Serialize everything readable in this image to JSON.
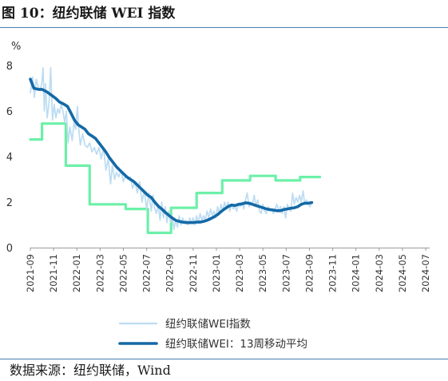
{
  "title": "图 10：纽约联储 WEI 指数",
  "source": "数据来源：纽约联储，Wind",
  "chart_data": {
    "type": "line",
    "unit": "%",
    "ylim": [
      0,
      8
    ],
    "y_ticks": [
      "0",
      "2",
      "4",
      "6",
      "8"
    ],
    "x_ticks": [
      "2021-09",
      "2021-11",
      "2022-01",
      "2022-03",
      "2022-05",
      "2022-07",
      "2022-09",
      "2022-11",
      "2023-01",
      "2023-03",
      "2023-05",
      "2023-07",
      "2023-09",
      "2023-11",
      "2024-01",
      "2024-03",
      "2024-05",
      "2024-07"
    ],
    "legend_position": "bottom",
    "series": [
      {
        "name": "纽约联储WEI指数",
        "color": "#bcdcf2",
        "style": "thin",
        "points": [
          [
            0,
            6.8
          ],
          [
            0.2,
            7.5
          ],
          [
            0.35,
            6.6
          ],
          [
            0.5,
            7.4
          ],
          [
            0.7,
            7.0
          ],
          [
            0.85,
            6.9
          ],
          [
            1.0,
            7.3
          ],
          [
            1.1,
            7.9
          ],
          [
            1.2,
            6.0
          ],
          [
            1.3,
            7.2
          ],
          [
            1.45,
            5.7
          ],
          [
            1.6,
            6.3
          ],
          [
            1.75,
            7.9
          ],
          [
            1.9,
            5.6
          ],
          [
            2.05,
            6.3
          ],
          [
            2.2,
            5.7
          ],
          [
            2.35,
            6.1
          ],
          [
            2.5,
            5.9
          ],
          [
            2.65,
            6.3
          ],
          [
            2.8,
            6.0
          ],
          [
            2.95,
            5.5
          ],
          [
            3.1,
            6.0
          ],
          [
            3.25,
            4.6
          ],
          [
            3.4,
            5.3
          ],
          [
            3.6,
            4.7
          ],
          [
            3.75,
            5.5
          ],
          [
            3.9,
            5.2
          ],
          [
            4.0,
            5.9
          ],
          [
            4.05,
            6.2
          ],
          [
            4.15,
            5.3
          ],
          [
            4.3,
            4.5
          ],
          [
            4.5,
            5.0
          ],
          [
            4.7,
            4.5
          ],
          [
            4.9,
            4.4
          ],
          [
            5.1,
            4.6
          ],
          [
            5.3,
            4.2
          ],
          [
            5.5,
            4.4
          ],
          [
            5.7,
            4.1
          ],
          [
            5.9,
            4.4
          ],
          [
            6.1,
            3.9
          ],
          [
            6.3,
            4.4
          ],
          [
            6.5,
            3.4
          ],
          [
            6.7,
            3.9
          ],
          [
            6.9,
            2.8
          ],
          [
            7.05,
            3.6
          ],
          [
            7.25,
            3.0
          ],
          [
            7.4,
            3.3
          ],
          [
            7.6,
            3.1
          ],
          [
            7.8,
            3.4
          ],
          [
            8.0,
            2.9
          ],
          [
            8.2,
            3.2
          ],
          [
            8.4,
            3.0
          ],
          [
            8.6,
            3.1
          ],
          [
            8.8,
            2.6
          ],
          [
            9.0,
            2.9
          ],
          [
            9.2,
            2.4
          ],
          [
            9.4,
            2.9
          ],
          [
            9.6,
            2.0
          ],
          [
            9.8,
            2.5
          ],
          [
            10.0,
            1.7
          ],
          [
            10.2,
            2.4
          ],
          [
            10.4,
            1.6
          ],
          [
            10.55,
            2.3
          ],
          [
            10.7,
            1.7
          ],
          [
            10.85,
            1.5
          ],
          [
            11.0,
            1.9
          ],
          [
            11.15,
            1.2
          ],
          [
            11.3,
            2.0
          ],
          [
            11.45,
            1.3
          ],
          [
            11.6,
            1.8
          ],
          [
            11.75,
            1.1
          ],
          [
            11.9,
            1.6
          ],
          [
            12.05,
            1.1
          ],
          [
            12.2,
            1.4
          ],
          [
            12.35,
            0.8
          ],
          [
            12.5,
            1.2
          ],
          [
            12.65,
            0.9
          ],
          [
            12.8,
            1.4
          ],
          [
            12.95,
            1.0
          ],
          [
            13.1,
            1.3
          ],
          [
            13.25,
            1.1
          ],
          [
            13.4,
            1.2
          ],
          [
            13.55,
            1.0
          ],
          [
            13.7,
            1.3
          ],
          [
            13.85,
            1.1
          ],
          [
            14.0,
            1.3
          ],
          [
            14.15,
            1.0
          ],
          [
            14.3,
            1.4
          ],
          [
            14.45,
            1.1
          ],
          [
            14.6,
            1.5
          ],
          [
            14.75,
            1.2
          ],
          [
            14.9,
            1.4
          ],
          [
            15.05,
            1.2
          ],
          [
            15.2,
            1.6
          ],
          [
            15.35,
            1.3
          ],
          [
            15.5,
            1.7
          ],
          [
            15.65,
            1.4
          ],
          [
            15.8,
            1.6
          ],
          [
            15.95,
            1.3
          ],
          [
            16.1,
            1.8
          ],
          [
            16.25,
            1.5
          ],
          [
            16.4,
            1.9
          ],
          [
            16.55,
            1.6
          ],
          [
            16.7,
            2.0
          ],
          [
            16.85,
            1.7
          ],
          [
            17.0,
            2.0
          ],
          [
            17.15,
            1.6
          ],
          [
            17.3,
            1.9
          ],
          [
            17.45,
            1.7
          ],
          [
            17.6,
            1.8
          ],
          [
            17.75,
            1.6
          ],
          [
            17.9,
            1.9
          ],
          [
            18.05,
            1.8
          ],
          [
            18.2,
            2.0
          ],
          [
            18.35,
            1.7
          ],
          [
            18.5,
            2.1
          ],
          [
            18.65,
            2.4
          ],
          [
            18.8,
            1.8
          ],
          [
            18.95,
            2.0
          ],
          [
            19.1,
            1.9
          ],
          [
            19.25,
            2.3
          ],
          [
            19.4,
            1.8
          ],
          [
            19.55,
            2.1
          ],
          [
            19.7,
            1.6
          ],
          [
            19.85,
            1.5
          ],
          [
            20.0,
            1.9
          ],
          [
            20.15,
            1.6
          ],
          [
            20.3,
            1.5
          ],
          [
            20.45,
            1.8
          ],
          [
            20.6,
            1.6
          ],
          [
            20.75,
            1.7
          ],
          [
            20.9,
            1.5
          ],
          [
            21.05,
            1.7
          ],
          [
            21.2,
            1.9
          ],
          [
            21.35,
            1.6
          ],
          [
            21.5,
            1.8
          ],
          [
            21.65,
            1.5
          ],
          [
            21.8,
            1.8
          ],
          [
            21.95,
            1.3
          ],
          [
            22.1,
            1.9
          ],
          [
            22.25,
            1.7
          ],
          [
            22.4,
            1.6
          ],
          [
            22.55,
            2.4
          ],
          [
            22.7,
            1.9
          ],
          [
            22.85,
            2.2
          ],
          [
            23.0,
            2.0
          ],
          [
            23.15,
            2.3
          ],
          [
            23.3,
            2.0
          ],
          [
            23.45,
            2.5
          ],
          [
            23.6,
            1.9
          ],
          [
            23.75,
            2.1
          ],
          [
            23.9,
            1.9
          ],
          [
            24.05,
            1.8
          ],
          [
            24.2,
            2.0
          ]
        ]
      },
      {
        "name": "纽约联储WEI：13周移动平均",
        "color": "#1469a6",
        "style": "thick",
        "points": [
          [
            0,
            7.4
          ],
          [
            0.3,
            7.0
          ],
          [
            0.7,
            6.95
          ],
          [
            1.0,
            6.95
          ],
          [
            1.4,
            6.85
          ],
          [
            1.8,
            6.7
          ],
          [
            2.2,
            6.55
          ],
          [
            2.5,
            6.4
          ],
          [
            2.9,
            6.3
          ],
          [
            3.2,
            6.2
          ],
          [
            3.5,
            5.9
          ],
          [
            3.8,
            5.6
          ],
          [
            4.1,
            5.4
          ],
          [
            4.4,
            5.3
          ],
          [
            4.7,
            5.2
          ],
          [
            5.0,
            5.0
          ],
          [
            5.3,
            4.9
          ],
          [
            5.6,
            4.8
          ],
          [
            5.9,
            4.6
          ],
          [
            6.2,
            4.4
          ],
          [
            6.5,
            4.2
          ],
          [
            6.8,
            3.95
          ],
          [
            7.1,
            3.75
          ],
          [
            7.4,
            3.55
          ],
          [
            7.7,
            3.4
          ],
          [
            8.0,
            3.25
          ],
          [
            8.3,
            3.1
          ],
          [
            8.6,
            3.0
          ],
          [
            8.9,
            2.9
          ],
          [
            9.2,
            2.75
          ],
          [
            9.5,
            2.6
          ],
          [
            9.8,
            2.45
          ],
          [
            10.1,
            2.3
          ],
          [
            10.4,
            2.2
          ],
          [
            10.7,
            2.0
          ],
          [
            11.0,
            1.82
          ],
          [
            11.3,
            1.7
          ],
          [
            11.6,
            1.55
          ],
          [
            11.9,
            1.42
          ],
          [
            12.2,
            1.3
          ],
          [
            12.5,
            1.2
          ],
          [
            12.8,
            1.15
          ],
          [
            13.1,
            1.12
          ],
          [
            13.4,
            1.1
          ],
          [
            13.7,
            1.1
          ],
          [
            14.0,
            1.1
          ],
          [
            14.3,
            1.12
          ],
          [
            14.6,
            1.12
          ],
          [
            14.9,
            1.15
          ],
          [
            15.2,
            1.2
          ],
          [
            15.5,
            1.27
          ],
          [
            15.8,
            1.35
          ],
          [
            16.1,
            1.45
          ],
          [
            16.4,
            1.58
          ],
          [
            16.7,
            1.7
          ],
          [
            17.0,
            1.8
          ],
          [
            17.3,
            1.87
          ],
          [
            17.6,
            1.85
          ],
          [
            17.9,
            1.9
          ],
          [
            18.2,
            1.92
          ],
          [
            18.5,
            1.97
          ],
          [
            18.8,
            1.95
          ],
          [
            19.1,
            1.9
          ],
          [
            19.4,
            1.85
          ],
          [
            19.7,
            1.8
          ],
          [
            20.0,
            1.75
          ],
          [
            20.3,
            1.7
          ],
          [
            20.6,
            1.67
          ],
          [
            20.9,
            1.65
          ],
          [
            21.2,
            1.62
          ],
          [
            21.5,
            1.62
          ],
          [
            21.8,
            1.67
          ],
          [
            22.1,
            1.7
          ],
          [
            22.4,
            1.73
          ],
          [
            22.7,
            1.75
          ],
          [
            23.0,
            1.8
          ],
          [
            23.3,
            1.9
          ],
          [
            23.6,
            1.95
          ],
          [
            23.9,
            1.95
          ],
          [
            24.2,
            1.98
          ]
        ]
      },
      {
        "name": "",
        "color": "#6cf0a8",
        "style": "step",
        "points": [
          [
            0,
            4.75
          ],
          [
            1.0,
            4.75
          ],
          [
            1.0,
            5.45
          ],
          [
            3.05,
            5.45
          ],
          [
            3.05,
            3.6
          ],
          [
            5.1,
            3.6
          ],
          [
            5.1,
            1.9
          ],
          [
            8.2,
            1.9
          ],
          [
            8.2,
            1.7
          ],
          [
            10.1,
            1.7
          ],
          [
            10.1,
            0.65
          ],
          [
            12.1,
            0.65
          ],
          [
            12.1,
            1.75
          ],
          [
            14.3,
            1.75
          ],
          [
            14.3,
            2.4
          ],
          [
            16.5,
            2.4
          ],
          [
            16.5,
            2.95
          ],
          [
            18.9,
            2.95
          ],
          [
            18.9,
            3.15
          ],
          [
            21.1,
            3.15
          ],
          [
            21.1,
            2.95
          ],
          [
            23.2,
            2.95
          ],
          [
            23.2,
            3.1
          ],
          [
            24.9,
            3.1
          ]
        ]
      }
    ]
  }
}
